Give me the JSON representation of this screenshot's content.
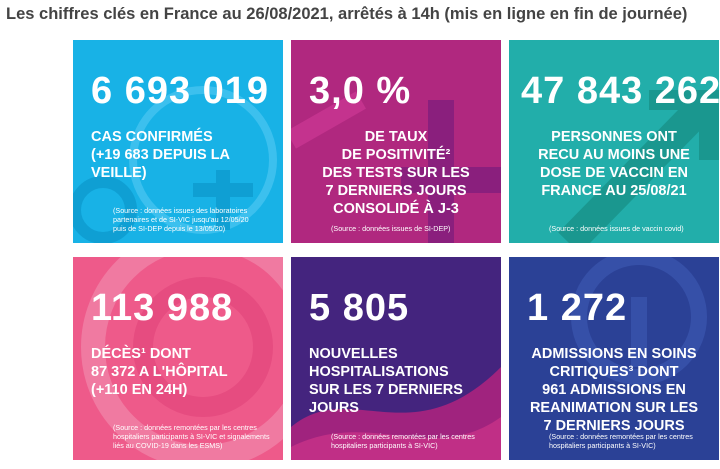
{
  "header": {
    "title": "Les chiffres clés en France au 26/08/2021, arrêtés à 14h (mis en ligne en fin de journée)"
  },
  "tiles": [
    {
      "value": "6 693 019",
      "description": "CAS CONFIRMÉS\n(+19 683 DEPUIS LA\nVEILLE)",
      "source": "(Source : données issues des laboratoires\npartenaires et de SI-VIC jusqu'au 12/05/20\npuis de SI-DEP depuis le 13/05/20)",
      "color": "#18b2e6"
    },
    {
      "value": "3,0 %",
      "description": "DE TAUX\nDE POSITIVITÉ²\nDES TESTS SUR LES\n7 DERNIERS JOURS\nCONSOLIDÉ À J-3",
      "source": "(Source : données issues de SI-DEP)",
      "color": "#b0287f"
    },
    {
      "value": "47 843 262",
      "description": "PERSONNES ONT\nRECU AU MOINS UNE\nDOSE DE VACCIN EN\nFRANCE AU 25/08/21",
      "source": "(Source : données issues de vaccin covid)",
      "color": "#22aeaa"
    },
    {
      "value": "113 988",
      "description": "DÉCÈS¹ DONT\n87 372 A L'HÔPITAL\n(+110 EN 24H)",
      "source": "(Source : données remontées par les centres\nhospitaliers participants à SI-VIC et signalements\nliés au COVID-19 dans les ESMS)",
      "color": "#ee5a8a"
    },
    {
      "value": "5 805",
      "description": "NOUVELLES\nHOSPITALISATIONS\nSUR LES 7 DERNIERS\nJOURS",
      "source": "(Source : données remontées par les centres\nhospitaliers participants à SI-VIC)",
      "color": "#44247e"
    },
    {
      "value": "1 272",
      "description": "ADMISSIONS EN SOINS\nCRITIQUES³ DONT\n961 ADMISSIONS EN\nREANIMATION SUR LES\n7 DERNIERS JOURS",
      "source": "(Source : données remontées par les centres\nhospitaliers participants à SI-VIC)",
      "color": "#2b4196"
    }
  ]
}
